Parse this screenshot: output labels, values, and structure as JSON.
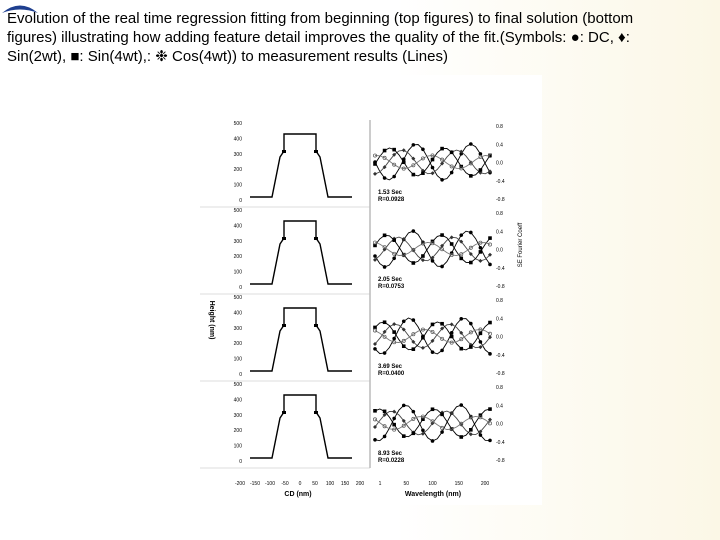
{
  "caption": {
    "line1": "Evolution of the real time regression fitting from beginning (top figures) to final solution (bottom",
    "line2_a": "figures) illustrating how adding feature detail improves the quality of the fit.(Symbols: ",
    "line2_b": ": DC, ",
    "line2_c": ":",
    "line3_a": "Sin(2wt), ",
    "line3_b": ": Sin(4wt),: ",
    "line3_c": " Cos(4wt)) to measurement results (Lines)"
  },
  "figure": {
    "left_ylabel": "Height (nm)",
    "left_xlabel": "CD (nm)",
    "right_xlabel": "Wavelength (nm)",
    "right_ylabel": "SE Fourier Coeff",
    "left_yticks": [
      "500",
      "400",
      "300",
      "200",
      "100",
      "0"
    ],
    "left_xticks": [
      "-200",
      "-150",
      "-100",
      "-50",
      "0",
      "50",
      "100",
      "150",
      "200"
    ],
    "right_xticks": [
      "1",
      "50",
      "100",
      "150",
      "200"
    ],
    "right_yticks": [
      "0.8",
      "0.4",
      "0.0",
      "-0.4",
      "-0.8"
    ],
    "panels": [
      {
        "time": "1.53 Sec",
        "r": "R=0.0928"
      },
      {
        "time": "2.05 Sec",
        "r": "R=0.0753"
      },
      {
        "time": "3.69 Sec",
        "r": "R=0.0400"
      },
      {
        "time": "8.93 Sec",
        "r": "R=0.0228"
      }
    ]
  }
}
